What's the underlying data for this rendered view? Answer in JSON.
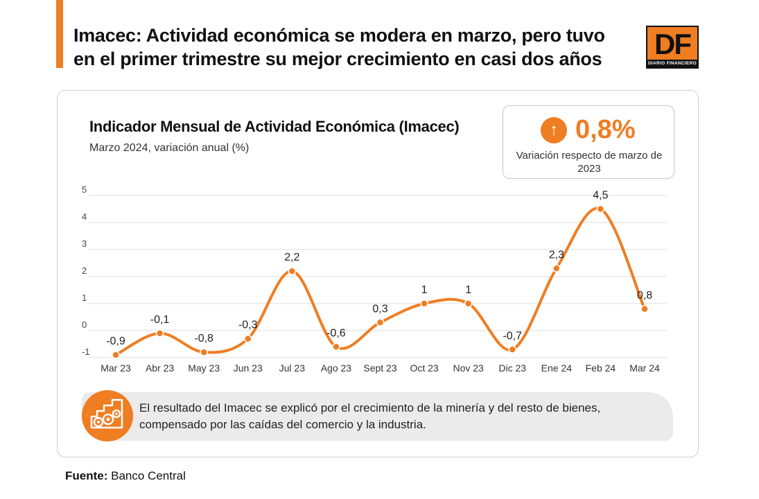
{
  "header": {
    "headline": "Imacec: Actividad económica se modera en marzo, pero tuvo en el primer trimestre su mejor crecimiento en casi dos años",
    "logo_letters": "DF",
    "logo_subtext": "DIARIO FINANCIERO"
  },
  "kpi": {
    "icon": "arrow-up-icon",
    "value": "0,8%",
    "description": "Variación respecto de marzo de 2023"
  },
  "note": {
    "icon": "industry-icon",
    "text": "El resultado del Imacec se explicó por el crecimiento de la minería y del resto de bienes, compensado por las caídas del comercio y la industria."
  },
  "source": {
    "label": "Fuente:",
    "value": "Banco Central"
  },
  "colors": {
    "accent": "#ef7d22",
    "grid": "#dddddd",
    "note_bg": "#ebebeb"
  },
  "chart_data": {
    "type": "line",
    "title": "Indicador Mensual de Actividad Económica (Imacec)",
    "subtitle": "Marzo 2024, variación anual (%)",
    "categories": [
      "Mar 23",
      "Abr 23",
      "May 23",
      "Jun 23",
      "Jul 23",
      "Ago 23",
      "Sept 23",
      "Oct 23",
      "Nov 23",
      "Dic 23",
      "Ene 24",
      "Feb 24",
      "Mar 24"
    ],
    "values": [
      -0.9,
      -0.1,
      -0.8,
      -0.3,
      2.2,
      -0.6,
      0.3,
      1,
      1,
      -0.7,
      2.3,
      4.5,
      0.8
    ],
    "data_labels": [
      "-0,9",
      "-0,1",
      "-0,8",
      "-0,3",
      "2,2",
      "-0,6",
      "0,3",
      "1",
      "1",
      "-0,7",
      "2,3",
      "4,5",
      "0,8"
    ],
    "y_ticks": [
      5,
      4,
      3,
      2,
      1,
      0,
      -1
    ],
    "y_tick_labels": [
      "5",
      "4",
      "3",
      "2",
      "1",
      "0",
      "-1"
    ],
    "ylim": [
      -1.2,
      5
    ],
    "grid": true,
    "smooth": true
  }
}
